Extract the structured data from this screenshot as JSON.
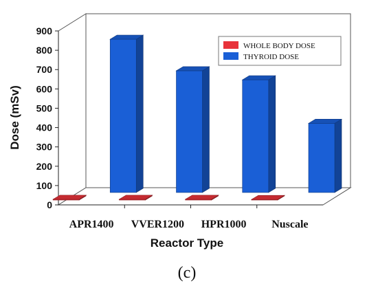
{
  "chart_data": {
    "type": "bar",
    "style": "3d-clustered",
    "categories": [
      "APR1400",
      "VVER1200",
      "HPR1000",
      "Nuscale"
    ],
    "series": [
      {
        "name": "WHOLE BODY DOSE",
        "color": "#e8323a",
        "values": [
          4,
          4,
          4,
          3
        ]
      },
      {
        "name": "THYROID DOSE",
        "color": "#1a5fd6",
        "values": [
          793,
          630,
          583,
          358
        ]
      }
    ],
    "xlabel": "Reactor Type",
    "ylabel": "Dose (mSv)",
    "ylim": [
      0,
      900
    ],
    "yticks": [
      0,
      100,
      200,
      300,
      400,
      500,
      600,
      700,
      800,
      900
    ],
    "grid": false,
    "legend_position": "top-right",
    "caption": "(c)"
  }
}
